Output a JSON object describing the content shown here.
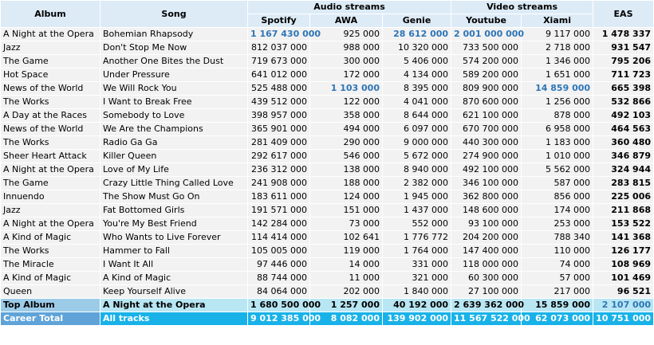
{
  "headers": {
    "album": "Album",
    "song": "Song",
    "audio_group": "Audio streams",
    "video_group": "Video streams",
    "eas": "EAS",
    "spotify": "Spotify",
    "awa": "AWA",
    "genie": "Genie",
    "youtube": "Youtube",
    "xiami": "Xiami"
  },
  "highlight_color": "#2e75b6",
  "rows": [
    {
      "album": "A Night at the Opera",
      "song": "Bohemian Rhapsody",
      "spotify": "1 167 430 000",
      "awa": "925 000",
      "genie": "28 612 000",
      "youtube": "2 001 000 000",
      "xiami": "9 117 000",
      "eas": "1 478 337",
      "hl": [
        "spotify",
        "genie",
        "youtube"
      ]
    },
    {
      "album": "Jazz",
      "song": "Don't Stop Me Now",
      "spotify": "812 037 000",
      "awa": "988 000",
      "genie": "10 320 000",
      "youtube": "733 500 000",
      "xiami": "2 718 000",
      "eas": "931 547",
      "hl": []
    },
    {
      "album": "The Game",
      "song": "Another One Bites the Dust",
      "spotify": "719 673 000",
      "awa": "300 000",
      "genie": "5 406 000",
      "youtube": "574 200 000",
      "xiami": "1 346 000",
      "eas": "795 206",
      "hl": []
    },
    {
      "album": "Hot Space",
      "song": "Under Pressure",
      "spotify": "641 012 000",
      "awa": "172 000",
      "genie": "4 134 000",
      "youtube": "589 200 000",
      "xiami": "1 651 000",
      "eas": "711 723",
      "hl": []
    },
    {
      "album": "News of the World",
      "song": "We Will Rock You",
      "spotify": "525 488 000",
      "awa": "1 103 000",
      "genie": "8 395 000",
      "youtube": "809 900 000",
      "xiami": "14 859 000",
      "eas": "665 398",
      "hl": [
        "awa",
        "xiami"
      ]
    },
    {
      "album": "The Works",
      "song": "I Want to Break Free",
      "spotify": "439 512 000",
      "awa": "122 000",
      "genie": "4 041 000",
      "youtube": "870 600 000",
      "xiami": "1 256 000",
      "eas": "532 866",
      "hl": []
    },
    {
      "album": "A Day at the Races",
      "song": "Somebody to Love",
      "spotify": "398 957 000",
      "awa": "358 000",
      "genie": "8 644 000",
      "youtube": "621 100 000",
      "xiami": "878 000",
      "eas": "492 103",
      "hl": []
    },
    {
      "album": "News of the World",
      "song": "We Are the Champions",
      "spotify": "365 901 000",
      "awa": "494 000",
      "genie": "6 097 000",
      "youtube": "670 700 000",
      "xiami": "6 958 000",
      "eas": "464 563",
      "hl": []
    },
    {
      "album": "The Works",
      "song": "Radio Ga Ga",
      "spotify": "281 409 000",
      "awa": "290 000",
      "genie": "9 000 000",
      "youtube": "440 300 000",
      "xiami": "1 183 000",
      "eas": "360 480",
      "hl": []
    },
    {
      "album": "Sheer Heart Attack",
      "song": "Killer Queen",
      "spotify": "292 617 000",
      "awa": "546 000",
      "genie": "5 672 000",
      "youtube": "274 900 000",
      "xiami": "1 010 000",
      "eas": "346 879",
      "hl": []
    },
    {
      "album": "A Night at the Opera",
      "song": "Love of My Life",
      "spotify": "236 312 000",
      "awa": "138 000",
      "genie": "8 940 000",
      "youtube": "492 100 000",
      "xiami": "5 562 000",
      "eas": "324 944",
      "hl": []
    },
    {
      "album": "The Game",
      "song": "Crazy Little Thing Called Love",
      "spotify": "241 908 000",
      "awa": "188 000",
      "genie": "2 382 000",
      "youtube": "346 100 000",
      "xiami": "587 000",
      "eas": "283 815",
      "hl": []
    },
    {
      "album": "Innuendo",
      "song": "The Show Must Go On",
      "spotify": "183 611 000",
      "awa": "124 000",
      "genie": "1 945 000",
      "youtube": "362 800 000",
      "xiami": "856 000",
      "eas": "225 006",
      "hl": []
    },
    {
      "album": "Jazz",
      "song": "Fat Bottomed Girls",
      "spotify": "191 571 000",
      "awa": "151 000",
      "genie": "1 437 000",
      "youtube": "148 600 000",
      "xiami": "174 000",
      "eas": "211 868",
      "hl": []
    },
    {
      "album": "A Night at the Opera",
      "song": "You're My Best Friend",
      "spotify": "142 284 000",
      "awa": "73 000",
      "genie": "552 000",
      "youtube": "93 100 000",
      "xiami": "253 000",
      "eas": "153 522",
      "hl": []
    },
    {
      "album": "A Kind of Magic",
      "song": "Who Wants to Live Forever",
      "spotify": "114 414 000",
      "awa": "102 641",
      "genie": "1 776 772",
      "youtube": "204 200 000",
      "xiami": "788 340",
      "eas": "141 368",
      "hl": []
    },
    {
      "album": "The Works",
      "song": "Hammer to Fall",
      "spotify": "105 005 000",
      "awa": "119 000",
      "genie": "1 764 000",
      "youtube": "147 400 000",
      "xiami": "110 000",
      "eas": "126 177",
      "hl": []
    },
    {
      "album": "The Miracle",
      "song": "I Want It All",
      "spotify": "97 446 000",
      "awa": "14 000",
      "genie": "331 000",
      "youtube": "118 000 000",
      "xiami": "74 000",
      "eas": "108 969",
      "hl": []
    },
    {
      "album": "A Kind of Magic",
      "song": "A Kind of Magic",
      "spotify": "88 744 000",
      "awa": "11 000",
      "genie": "321 000",
      "youtube": "60 300 000",
      "xiami": "57 000",
      "eas": "101 469",
      "hl": []
    },
    {
      "album": "Queen",
      "song": "Keep Yourself Alive",
      "spotify": "84 064 000",
      "awa": "202 000",
      "genie": "1 840 000",
      "youtube": "27 100 000",
      "xiami": "217 000",
      "eas": "96 521",
      "hl": []
    }
  ],
  "top_album": {
    "label": "Top Album",
    "song": "A Night at the Opera",
    "spotify": "1 680 500 000",
    "awa": "1 257 000",
    "genie": "40 192 000",
    "youtube": "2 639 362 000",
    "xiami": "15 859 000",
    "eas": "2 107 000"
  },
  "career_total": {
    "label": "Career Total",
    "song": "All tracks",
    "spotify": "9 012 385 000",
    "awa": "8 082 000",
    "genie": "139 902 000",
    "youtube": "11 567 522 000",
    "xiami": "62 073 000",
    "eas": "10 751 000"
  }
}
